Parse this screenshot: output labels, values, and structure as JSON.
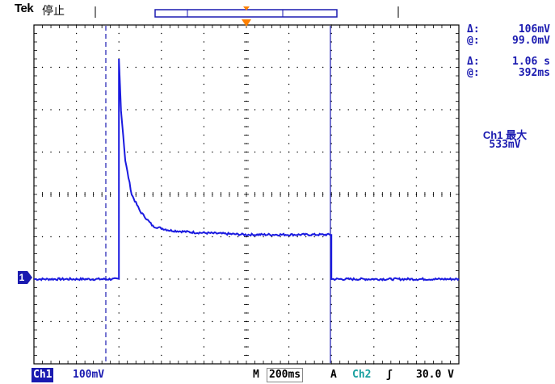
{
  "header": {
    "brand": "Tek",
    "status": "停止"
  },
  "readouts": {
    "amp_delta_label": "Δ:",
    "amp_delta_value": "106mV",
    "amp_at_label": "@:",
    "amp_at_value": "99.0mV",
    "time_delta_label": "Δ:",
    "time_delta_value": "1.06 s",
    "time_at_label": "@:",
    "time_at_value": "392ms",
    "measure_title": "Ch1 最大",
    "measure_value": "533mV"
  },
  "footer": {
    "channel": "Ch1",
    "channel_scale": "100mV",
    "timebase_label": "M",
    "timebase_value": "200ms",
    "trigger_label": "A",
    "trigger_source": "Ch2",
    "trigger_slope": "ʃ",
    "trigger_level": "30.0 V"
  },
  "marker": {
    "channel_number": "1"
  },
  "colors": {
    "trace": "#1a1ae0",
    "text": "#1a1ab0",
    "trigger_marker": "#ff8000",
    "grid": "#000000"
  },
  "chart_data": {
    "type": "line",
    "x_units": "divisions",
    "y_units": "divisions",
    "xlim": [
      0,
      10
    ],
    "ylim": [
      -4,
      4
    ],
    "grid": true,
    "series": [
      {
        "x": [
          0,
          2.0,
          2.0,
          2.05,
          2.15,
          2.3,
          2.5,
          2.8,
          3.2,
          3.8,
          5.0,
          6.0,
          7.0,
          7.0,
          10.0
        ],
        "y": [
          -2.0,
          -2.0,
          3.2,
          2.0,
          0.8,
          0.0,
          -0.4,
          -0.75,
          -0.85,
          -0.9,
          -0.95,
          -0.95,
          -0.95,
          -2.0,
          -2.0
        ]
      }
    ]
  }
}
